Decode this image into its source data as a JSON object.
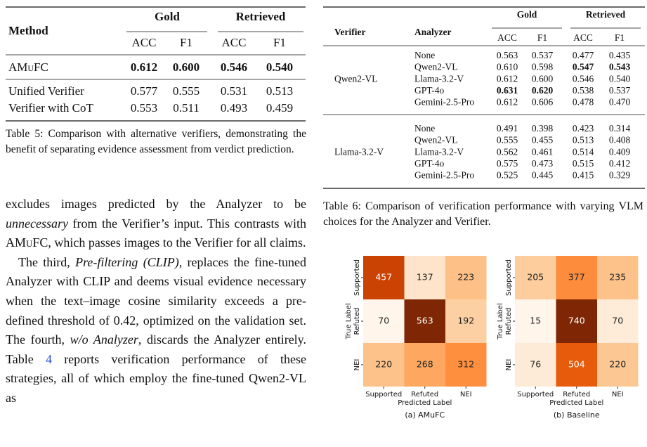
{
  "table5": {
    "headers": {
      "method": "Method",
      "groups": [
        "Gold",
        "Retrieved"
      ],
      "metrics": [
        "ACC",
        "F1",
        "ACC",
        "F1"
      ]
    },
    "rows": [
      {
        "method": "AMuFC",
        "smallcaps": true,
        "values": [
          "0.612",
          "0.600",
          "0.546",
          "0.540"
        ],
        "bold": [
          0,
          1,
          2,
          3
        ]
      },
      {
        "method": "Unified Verifier",
        "values": [
          "0.577",
          "0.555",
          "0.531",
          "0.513"
        ]
      },
      {
        "method": "Verifier with CoT",
        "values": [
          "0.553",
          "0.511",
          "0.493",
          "0.459"
        ]
      }
    ],
    "caption": "Table 5: Comparison with alternative verifiers, demonstrating the benefit of separating evidence assessment from verdict prediction."
  },
  "body": {
    "paragraphs": [
      {
        "indent": false,
        "runs": [
          {
            "text": "excludes images predicted by the Analyzer to be ",
            "style": "normal"
          },
          {
            "text": "unnecessary",
            "style": "italic"
          },
          {
            "text": " from the Verifier’s input. This contrasts with ",
            "style": "normal"
          },
          {
            "text": "AMuFC",
            "style": "smallcaps"
          },
          {
            "text": ", which passes images to the Verifier for all claims.",
            "style": "normal"
          }
        ]
      },
      {
        "indent": true,
        "runs": [
          {
            "text": "The third, ",
            "style": "normal"
          },
          {
            "text": "Pre-filtering (CLIP)",
            "style": "italic"
          },
          {
            "text": ", replaces the fine-tuned Analyzer with CLIP and deems visual evidence necessary when the text–image cosine similarity exceeds a pre-defined threshold of 0.42, optimized on the validation set. The fourth, ",
            "style": "normal"
          },
          {
            "text": "w/o Analyzer",
            "style": "italic"
          },
          {
            "text": ", discards the Analyzer entirely. Table ",
            "style": "normal"
          },
          {
            "text": "4",
            "style": "link"
          },
          {
            "text": " reports verification performance of these strategies, all of which employ the fine-tuned Qwen2-VL as",
            "style": "normal"
          }
        ]
      }
    ]
  },
  "table6": {
    "headers": {
      "verifier": "Verifier",
      "analyzer": "Analyzer",
      "groups": [
        "Gold",
        "Retrieved"
      ],
      "metrics": [
        "ACC",
        "F1",
        "ACC",
        "F1"
      ]
    },
    "groups": [
      {
        "verifier": "Qwen2-VL",
        "rows": [
          {
            "analyzer": "None",
            "values": [
              "0.563",
              "0.537",
              "0.477",
              "0.435"
            ]
          },
          {
            "analyzer": "Qwen2-VL",
            "values": [
              "0.610",
              "0.598",
              "0.547",
              "0.543"
            ],
            "bold": [
              2,
              3
            ]
          },
          {
            "analyzer": "Llama-3.2-V",
            "values": [
              "0.612",
              "0.600",
              "0.546",
              "0.540"
            ]
          },
          {
            "analyzer": "GPT-4o",
            "values": [
              "0.631",
              "0.620",
              "0.538",
              "0.537"
            ],
            "bold": [
              0,
              1
            ]
          },
          {
            "analyzer": "Gemini-2.5-Pro",
            "values": [
              "0.612",
              "0.606",
              "0.478",
              "0.470"
            ]
          }
        ]
      },
      {
        "verifier": "Llama-3.2-V",
        "rows": [
          {
            "analyzer": "None",
            "values": [
              "0.491",
              "0.398",
              "0.423",
              "0.314"
            ]
          },
          {
            "analyzer": "Qwen2-VL",
            "values": [
              "0.555",
              "0.455",
              "0.513",
              "0.408"
            ]
          },
          {
            "analyzer": "Llama-3.2-V",
            "values": [
              "0.562",
              "0.461",
              "0.514",
              "0.409"
            ]
          },
          {
            "analyzer": "GPT-4o",
            "values": [
              "0.575",
              "0.473",
              "0.515",
              "0.412"
            ]
          },
          {
            "analyzer": "Gemini-2.5-Pro",
            "values": [
              "0.525",
              "0.445",
              "0.415",
              "0.329"
            ]
          }
        ]
      }
    ],
    "caption": "Table 6: Comparison of verification performance with varying VLM choices for the Analyzer and Verifier."
  },
  "figure": {
    "panels": [
      {
        "caption": "(a) AMuFC",
        "x_label": "Predicted Label",
        "y_label": "True Label",
        "classes": [
          "Supported",
          "Refuted",
          "NEI"
        ],
        "matrix": [
          [
            457,
            137,
            223
          ],
          [
            70,
            563,
            192
          ],
          [
            220,
            268,
            312
          ]
        ]
      },
      {
        "caption": "(b) Baseline",
        "x_label": "Predicted Label",
        "y_label": "True Label",
        "classes": [
          "Supported",
          "Refuted",
          "NEI"
        ],
        "matrix": [
          [
            205,
            377,
            235
          ],
          [
            15,
            740,
            70
          ],
          [
            76,
            504,
            220
          ]
        ]
      }
    ]
  }
}
